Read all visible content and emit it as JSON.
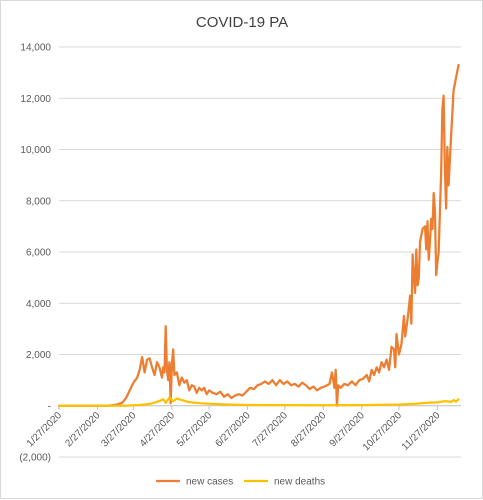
{
  "chart_data": {
    "type": "line",
    "title": "COVID-19 PA",
    "xlabel": "",
    "ylabel": "",
    "x_tick_labels": [
      "1/27/2020",
      "2/27/2020",
      "3/27/2020",
      "4/27/2020",
      "5/27/2020",
      "6/27/2020",
      "7/27/2020",
      "8/27/2020",
      "9/27/2020",
      "10/27/2020",
      "11/27/2020"
    ],
    "x_range": [
      "1/27/2020",
      "12/16/2020"
    ],
    "y_tick_labels": [
      "(2,000)",
      "-",
      "2,000",
      "4,000",
      "6,000",
      "8,000",
      "10,000",
      "12,000",
      "14,000"
    ],
    "ylim": [
      -2000,
      14000
    ],
    "y_step": 2000,
    "grid": true,
    "legend_position": "bottom",
    "series": [
      {
        "name": "new cases",
        "color": "#ED7D31",
        "points": [
          [
            "1/27/2020",
            0
          ],
          [
            "2/27/2020",
            0
          ],
          [
            "3/6/2020",
            0
          ],
          [
            "3/10/2020",
            20
          ],
          [
            "3/14/2020",
            50
          ],
          [
            "3/18/2020",
            120
          ],
          [
            "3/21/2020",
            300
          ],
          [
            "3/24/2020",
            600
          ],
          [
            "3/27/2020",
            900
          ],
          [
            "3/30/2020",
            1100
          ],
          [
            "4/1/2020",
            1400
          ],
          [
            "4/3/2020",
            1900
          ],
          [
            "4/5/2020",
            1300
          ],
          [
            "4/7/2020",
            1800
          ],
          [
            "4/9/2020",
            1850
          ],
          [
            "4/11/2020",
            1500
          ],
          [
            "4/13/2020",
            1200
          ],
          [
            "4/15/2020",
            1700
          ],
          [
            "4/17/2020",
            1500
          ],
          [
            "4/19/2020",
            1100
          ],
          [
            "4/20/2020",
            1500
          ],
          [
            "4/21/2020",
            1300
          ],
          [
            "4/22/2020",
            3100
          ],
          [
            "4/23/2020",
            1400
          ],
          [
            "4/24/2020",
            1000
          ],
          [
            "4/25/2020",
            1700
          ],
          [
            "4/26/2020",
            100
          ],
          [
            "4/27/2020",
            1600
          ],
          [
            "4/28/2020",
            2200
          ],
          [
            "4/29/2020",
            1200
          ],
          [
            "5/1/2020",
            1300
          ],
          [
            "5/3/2020",
            800
          ],
          [
            "5/5/2020",
            1100
          ],
          [
            "5/7/2020",
            900
          ],
          [
            "5/9/2020",
            1000
          ],
          [
            "5/11/2020",
            600
          ],
          [
            "5/13/2020",
            800
          ],
          [
            "5/15/2020",
            750
          ],
          [
            "5/17/2020",
            500
          ],
          [
            "5/19/2020",
            700
          ],
          [
            "5/21/2020",
            600
          ],
          [
            "5/23/2020",
            700
          ],
          [
            "5/25/2020",
            450
          ],
          [
            "5/27/2020",
            600
          ],
          [
            "5/30/2020",
            500
          ],
          [
            "6/2/2020",
            450
          ],
          [
            "6/5/2020",
            550
          ],
          [
            "6/8/2020",
            350
          ],
          [
            "6/11/2020",
            450
          ],
          [
            "6/14/2020",
            300
          ],
          [
            "6/17/2020",
            400
          ],
          [
            "6/20/2020",
            450
          ],
          [
            "6/23/2020",
            400
          ],
          [
            "6/26/2020",
            550
          ],
          [
            "6/29/2020",
            700
          ],
          [
            "7/2/2020",
            650
          ],
          [
            "7/5/2020",
            800
          ],
          [
            "7/8/2020",
            850
          ],
          [
            "7/11/2020",
            950
          ],
          [
            "7/14/2020",
            850
          ],
          [
            "7/17/2020",
            1000
          ],
          [
            "7/20/2020",
            800
          ],
          [
            "7/23/2020",
            1000
          ],
          [
            "7/26/2020",
            850
          ],
          [
            "7/29/2020",
            950
          ],
          [
            "8/1/2020",
            800
          ],
          [
            "8/4/2020",
            850
          ],
          [
            "8/7/2020",
            750
          ],
          [
            "8/10/2020",
            900
          ],
          [
            "8/13/2020",
            800
          ],
          [
            "8/16/2020",
            650
          ],
          [
            "8/19/2020",
            750
          ],
          [
            "8/22/2020",
            600
          ],
          [
            "8/25/2020",
            700
          ],
          [
            "8/28/2020",
            750
          ],
          [
            "9/1/2020",
            850
          ],
          [
            "9/3/2020",
            1300
          ],
          [
            "9/5/2020",
            700
          ],
          [
            "9/6/2020",
            1400
          ],
          [
            "9/7/2020",
            0
          ],
          [
            "9/8/2020",
            800
          ],
          [
            "9/10/2020",
            700
          ],
          [
            "9/13/2020",
            850
          ],
          [
            "9/16/2020",
            800
          ],
          [
            "9/19/2020",
            950
          ],
          [
            "9/22/2020",
            800
          ],
          [
            "9/25/2020",
            1000
          ],
          [
            "9/28/2020",
            1050
          ],
          [
            "10/1/2020",
            1200
          ],
          [
            "10/3/2020",
            950
          ],
          [
            "10/5/2020",
            1400
          ],
          [
            "10/7/2020",
            1200
          ],
          [
            "10/9/2020",
            1500
          ],
          [
            "10/11/2020",
            1300
          ],
          [
            "10/13/2020",
            1700
          ],
          [
            "10/15/2020",
            1500
          ],
          [
            "10/17/2020",
            1800
          ],
          [
            "10/19/2020",
            1400
          ],
          [
            "10/21/2020",
            2300
          ],
          [
            "10/23/2020",
            2200
          ],
          [
            "10/24/2020",
            1500
          ],
          [
            "10/25/2020",
            2800
          ],
          [
            "10/27/2020",
            2000
          ],
          [
            "10/29/2020",
            2400
          ],
          [
            "10/31/2020",
            3500
          ],
          [
            "11/1/2020",
            2700
          ],
          [
            "11/3/2020",
            3400
          ],
          [
            "11/5/2020",
            4300
          ],
          [
            "11/6/2020",
            3200
          ],
          [
            "11/7/2020",
            5900
          ],
          [
            "11/9/2020",
            4400
          ],
          [
            "11/10/2020",
            6100
          ],
          [
            "11/11/2020",
            4700
          ],
          [
            "11/12/2020",
            5000
          ],
          [
            "11/13/2020",
            6400
          ],
          [
            "11/15/2020",
            6900
          ],
          [
            "11/17/2020",
            7000
          ],
          [
            "11/18/2020",
            6100
          ],
          [
            "11/19/2020",
            7200
          ],
          [
            "11/20/2020",
            5700
          ],
          [
            "11/21/2020",
            6400
          ],
          [
            "11/22/2020",
            7300
          ],
          [
            "11/23/2020",
            6900
          ],
          [
            "11/24/2020",
            8300
          ],
          [
            "11/25/2020",
            7600
          ],
          [
            "11/26/2020",
            5100
          ],
          [
            "11/27/2020",
            5600
          ],
          [
            "11/28/2020",
            6000
          ],
          [
            "11/30/2020",
            9100
          ],
          [
            "12/1/2020",
            11600
          ],
          [
            "12/2/2020",
            12100
          ],
          [
            "12/3/2020",
            9300
          ],
          [
            "12/4/2020",
            7700
          ],
          [
            "12/5/2020",
            10100
          ],
          [
            "12/6/2020",
            8600
          ],
          [
            "12/8/2020",
            10500
          ],
          [
            "12/10/2020",
            12300
          ],
          [
            "12/12/2020",
            12800
          ],
          [
            "12/14/2020",
            13300
          ]
        ]
      },
      {
        "name": "new deaths",
        "color": "#FFC000",
        "points": [
          [
            "1/27/2020",
            0
          ],
          [
            "3/20/2020",
            0
          ],
          [
            "4/1/2020",
            30
          ],
          [
            "4/10/2020",
            80
          ],
          [
            "4/15/2020",
            150
          ],
          [
            "4/20/2020",
            250
          ],
          [
            "4/22/2020",
            120
          ],
          [
            "4/25/2020",
            320
          ],
          [
            "4/28/2020",
            180
          ],
          [
            "5/1/2020",
            280
          ],
          [
            "5/5/2020",
            220
          ],
          [
            "5/10/2020",
            150
          ],
          [
            "5/15/2020",
            120
          ],
          [
            "5/20/2020",
            100
          ],
          [
            "5/27/2020",
            80
          ],
          [
            "6/10/2020",
            50
          ],
          [
            "6/27/2020",
            30
          ],
          [
            "7/27/2020",
            25
          ],
          [
            "8/27/2020",
            20
          ],
          [
            "9/27/2020",
            25
          ],
          [
            "10/15/2020",
            40
          ],
          [
            "10/27/2020",
            50
          ],
          [
            "11/10/2020",
            80
          ],
          [
            "11/20/2020",
            120
          ],
          [
            "11/27/2020",
            130
          ],
          [
            "12/3/2020",
            180
          ],
          [
            "12/8/2020",
            150
          ],
          [
            "12/10/2020",
            220
          ],
          [
            "12/12/2020",
            160
          ],
          [
            "12/14/2020",
            250
          ]
        ]
      }
    ]
  }
}
